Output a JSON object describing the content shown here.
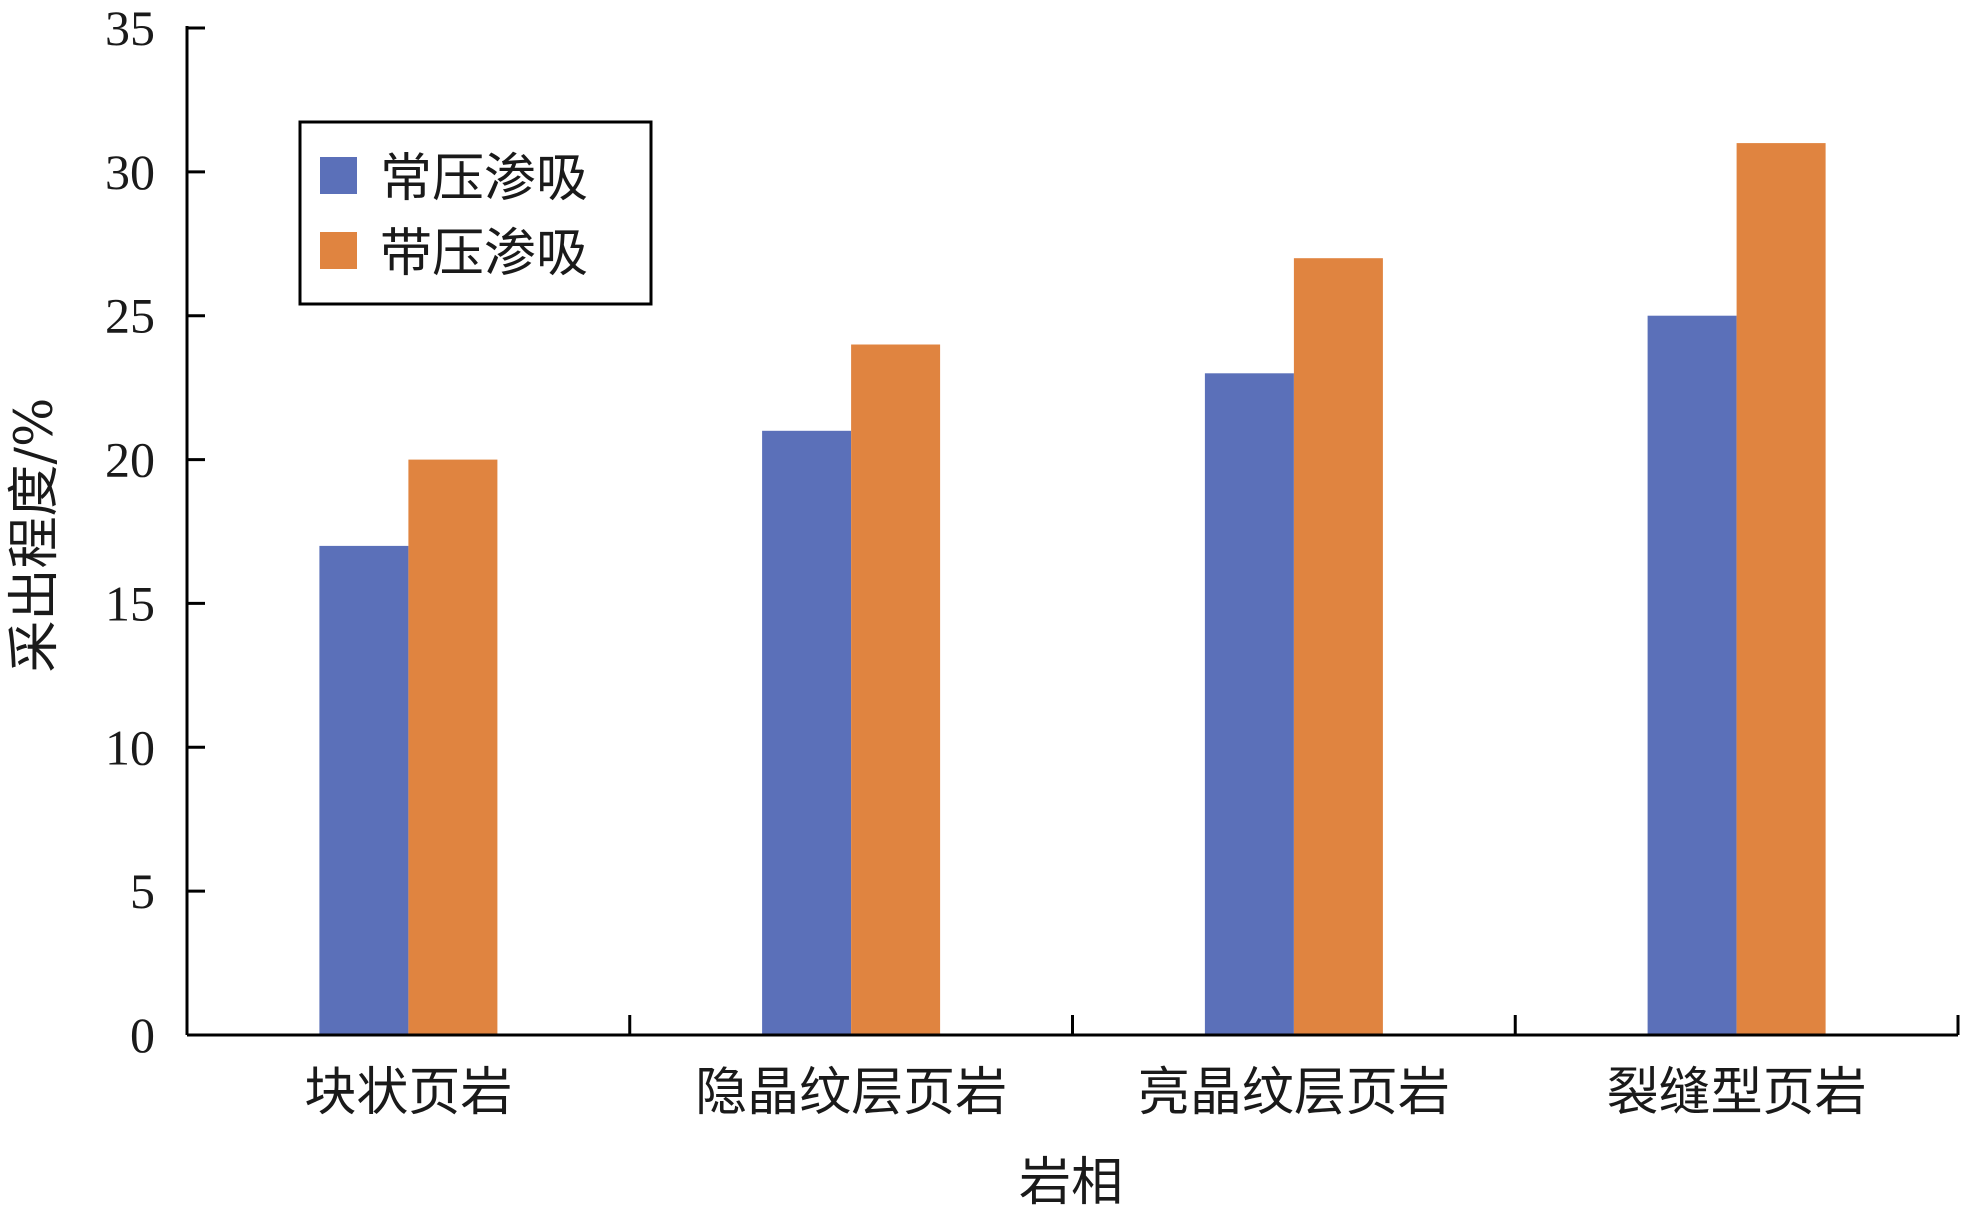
{
  "chart_data": {
    "type": "bar",
    "title": "",
    "xlabel": "岩相",
    "ylabel": "采出程度/%",
    "categories": [
      "块状页岩",
      "隐晶纹层页岩",
      "亮晶纹层页岩",
      "裂缝型页岩"
    ],
    "series": [
      {
        "name": "常压渗吸",
        "color": "#5b70b9",
        "values": [
          17,
          21,
          23,
          25
        ]
      },
      {
        "name": "带压渗吸",
        "color": "#e08440",
        "values": [
          20,
          24,
          27,
          31
        ]
      }
    ],
    "ylim": [
      0,
      35
    ],
    "yticks": [
      0,
      5,
      10,
      15,
      20,
      25,
      30,
      35
    ],
    "grid": false,
    "legend_position": "top-left"
  }
}
